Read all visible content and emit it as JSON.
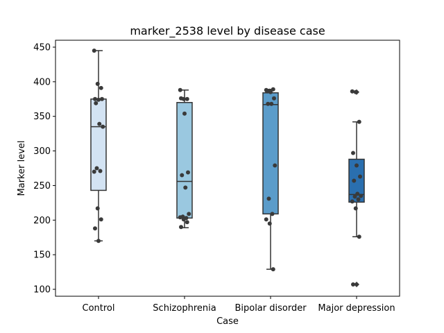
{
  "chart_data": {
    "type": "box",
    "title": "marker_2538 level by disease case",
    "xlabel": "Case",
    "ylabel": "Marker level",
    "ylim": [
      90,
      460
    ],
    "yticks": [
      100,
      150,
      200,
      250,
      300,
      350,
      400,
      450
    ],
    "grid": false,
    "categories": [
      "Control",
      "Schizophrenia",
      "Bipolar disorder",
      "Major depression"
    ],
    "box_colors": [
      "#d3e3f3",
      "#9ac8e0",
      "#5b9cca",
      "#2a6faf"
    ],
    "edge_color": "#333333",
    "point_color": "#3a3a3a",
    "boxes": [
      {
        "q1": 243,
        "median": 335,
        "q3": 375,
        "whisker_low": 170,
        "whisker_high": 445,
        "outliers": []
      },
      {
        "q1": 203,
        "median": 256,
        "q3": 370,
        "whisker_low": 189,
        "whisker_high": 388,
        "outliers": []
      },
      {
        "q1": 209,
        "median": 367,
        "q3": 384,
        "whisker_low": 129,
        "whisker_high": 389,
        "outliers": []
      },
      {
        "q1": 226,
        "median": 237,
        "q3": 288,
        "whisker_low": 176,
        "whisker_high": 342,
        "outliers": [
          107,
          385
        ]
      }
    ],
    "points": [
      [
        445,
        397,
        391,
        375,
        374,
        375,
        369,
        339,
        335,
        275,
        271,
        270,
        217,
        201,
        188,
        170
      ],
      [
        388,
        375,
        375,
        376,
        354,
        269,
        265,
        247,
        209,
        205,
        203,
        204,
        201,
        197,
        190
      ],
      [
        388,
        387,
        389,
        386,
        385,
        376,
        368,
        368,
        279,
        231,
        209,
        201,
        195,
        129
      ],
      [
        386,
        385,
        342,
        297,
        279,
        263,
        257,
        238,
        235,
        234,
        230,
        227,
        217,
        176,
        107
      ]
    ]
  }
}
